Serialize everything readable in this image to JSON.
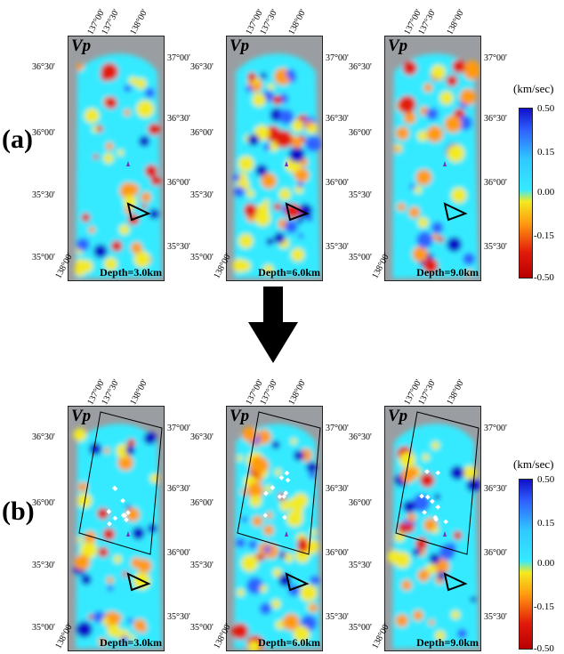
{
  "rows": [
    {
      "label": "(a)"
    },
    {
      "label": "(b)"
    }
  ],
  "panels": [
    {
      "title": "Vp",
      "depth_label": "Depth=3.0km",
      "row": "a"
    },
    {
      "title": "Vp",
      "depth_label": "Depth=6.0km",
      "row": "a"
    },
    {
      "title": "Vp",
      "depth_label": "Depth=9.0km",
      "row": "a"
    },
    {
      "title": "Vp",
      "depth_label": "Depth=3.0km",
      "row": "b"
    },
    {
      "title": "Vp",
      "depth_label": "Depth=6.0km",
      "row": "b"
    },
    {
      "title": "Vp",
      "depth_label": "Depth=9.0km",
      "row": "b"
    }
  ],
  "lon_ticks": [
    "137°00'",
    "137°30'",
    "138°00'"
  ],
  "lat_ticks_right": [
    "37°00'",
    "36°30'",
    "36°00'",
    "35°30'"
  ],
  "lat_ticks_left": [
    "36°30'",
    "36°00'",
    "35°30'",
    "35°00'"
  ],
  "bottom_lon_tick": "138°00'",
  "colorbar": {
    "unit": "(km/sec)",
    "labels": [
      "0.50",
      "0.15",
      "0.00",
      "-0.15",
      "-0.50"
    ]
  },
  "colors": {
    "background": "#9a9ea2",
    "positive": "#2f62ff",
    "neutral": "#35eaff",
    "negative": "#e21a0a"
  }
}
